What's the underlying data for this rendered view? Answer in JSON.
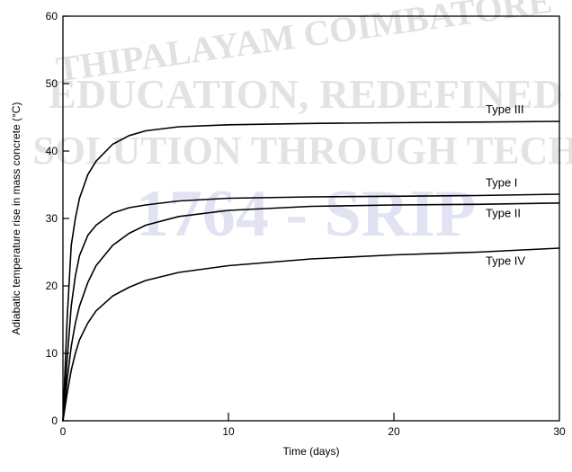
{
  "watermark": {
    "arc_text": "THIPALAYAM COIMBATORE",
    "line1": "EDUCATION, REDEFINED",
    "line2": "SOLUTION THROUGH TECH",
    "line3": "1764 - SRIP",
    "color_text": "#c9c9c9",
    "color_brand": "#c9cde9"
  },
  "chart_data": {
    "type": "line",
    "title": "",
    "xlabel": "Time (days)",
    "ylabel": "Adiabatic temperature rise in mass concrete (°C)",
    "xlim": [
      0,
      30
    ],
    "ylim": [
      0,
      60
    ],
    "xticks": [
      0,
      10,
      20,
      30
    ],
    "yticks": [
      0,
      10,
      20,
      30,
      40,
      50,
      60
    ],
    "grid": false,
    "legend": "inline labels at right end of curves",
    "series": [
      {
        "name": "Type III",
        "x": [
          0,
          0.25,
          0.5,
          0.75,
          1,
          1.5,
          2,
          3,
          4,
          5,
          7,
          10,
          15,
          20,
          25,
          30
        ],
        "y": [
          0,
          15,
          26,
          30,
          33,
          36.5,
          38.5,
          41,
          42.3,
          43,
          43.6,
          43.9,
          44.1,
          44.2,
          44.3,
          44.4
        ]
      },
      {
        "name": "Type I",
        "x": [
          0,
          0.25,
          0.5,
          0.75,
          1,
          1.5,
          2,
          3,
          4,
          5,
          7,
          10,
          15,
          20,
          25,
          30
        ],
        "y": [
          0,
          9,
          17,
          21.5,
          24.5,
          27.5,
          29,
          30.8,
          31.6,
          32,
          32.6,
          33,
          33.2,
          33.3,
          33.4,
          33.6
        ]
      },
      {
        "name": "Type II",
        "x": [
          0,
          0.25,
          0.5,
          0.75,
          1,
          1.5,
          2,
          3,
          4,
          5,
          7,
          10,
          15,
          20,
          25,
          30
        ],
        "y": [
          0,
          6,
          11,
          14.5,
          17,
          20.5,
          23,
          26,
          27.8,
          29,
          30.3,
          31.2,
          31.8,
          32,
          32.1,
          32.3
        ]
      },
      {
        "name": "Type IV",
        "x": [
          0,
          0.25,
          0.5,
          0.75,
          1,
          1.5,
          2,
          3,
          4,
          5,
          7,
          10,
          15,
          20,
          25,
          30
        ],
        "y": [
          0,
          4,
          7.5,
          10,
          12,
          14.5,
          16.3,
          18.5,
          19.8,
          20.8,
          22,
          23,
          24,
          24.6,
          25,
          25.6
        ]
      }
    ]
  }
}
